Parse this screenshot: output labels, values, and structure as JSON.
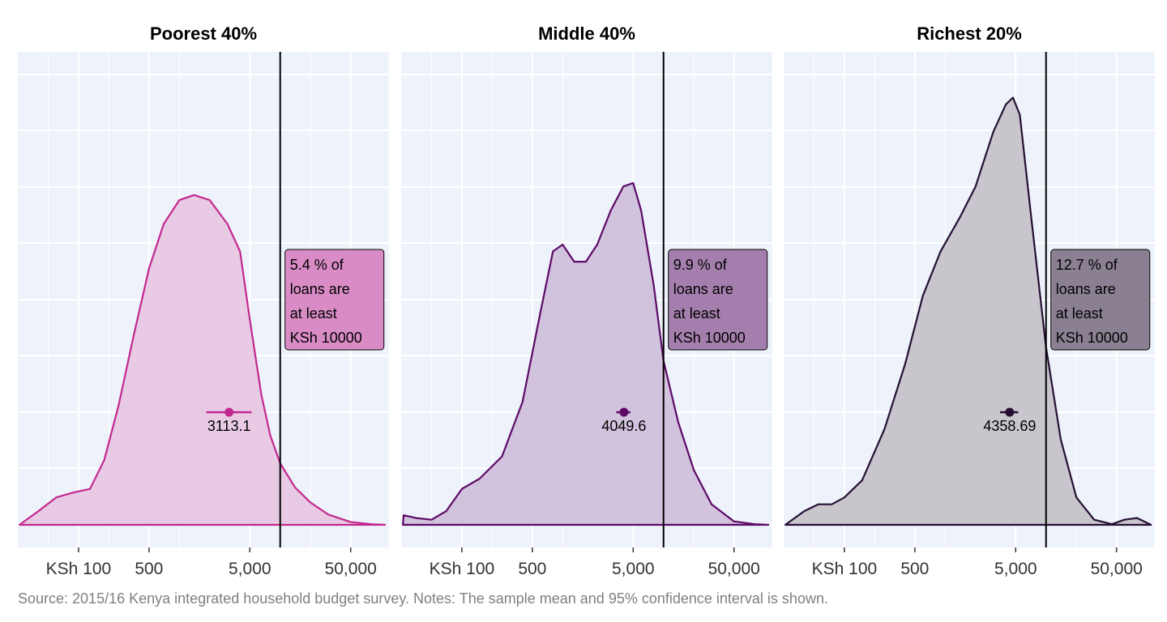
{
  "caption": "Source: 2015/16 Kenya integrated household budget survey. Notes: The sample mean and 95% confidence interval is shown.",
  "chart_data": [
    {
      "type": "area",
      "title": "Poorest 40%",
      "xscale": "log",
      "xlim": [
        25,
        120000
      ],
      "xticks": [
        100,
        500,
        5000,
        50000
      ],
      "xtick_labels": [
        "KSh 100",
        "500",
        "5,000",
        "50,000"
      ],
      "threshold": 10000,
      "annotation": [
        "5.4 % of",
        "loans are",
        "at least",
        "KSh 10000"
      ],
      "mean": 3113.1,
      "mean_label": "3113.1",
      "ci": [
        1850,
        5200
      ],
      "color": "#c3288f",
      "fill": "#e8cae4",
      "label_fill": "#d88bc5",
      "density": {
        "x": [
          26,
          40,
          60,
          90,
          130,
          180,
          250,
          350,
          500,
          700,
          1000,
          1400,
          2000,
          3000,
          4000,
          5000,
          6500,
          8000,
          10000,
          14000,
          20000,
          30000,
          50000,
          80000,
          110000
        ],
        "y": [
          0.0,
          0.04,
          0.08,
          0.095,
          0.105,
          0.19,
          0.35,
          0.55,
          0.75,
          0.88,
          0.95,
          0.965,
          0.95,
          0.88,
          0.8,
          0.6,
          0.38,
          0.26,
          0.18,
          0.11,
          0.065,
          0.03,
          0.008,
          0.002,
          0.0
        ]
      }
    },
    {
      "type": "area",
      "title": "Middle 40%",
      "xscale": "log",
      "xlim": [
        25,
        120000
      ],
      "xticks": [
        100,
        500,
        5000,
        50000
      ],
      "xtick_labels": [
        "KSh 100",
        "500",
        "5,000",
        "50,000"
      ],
      "threshold": 10000,
      "annotation": [
        "9.9 % of",
        "loans are",
        "at least",
        "KSh 10000"
      ],
      "mean": 4049.6,
      "mean_label": "4049.6",
      "ci": [
        3400,
        4700
      ],
      "color": "#5c0a66",
      "fill": "#d1c2dd",
      "label_fill": "#a47fad",
      "density": {
        "x": [
          26,
          26.5,
          35,
          50,
          70,
          100,
          150,
          250,
          400,
          600,
          800,
          1000,
          1300,
          1700,
          2200,
          3000,
          4000,
          5000,
          6000,
          8000,
          10000,
          14000,
          20000,
          30000,
          50000,
          80000,
          110000
        ],
        "y": [
          0.0,
          0.028,
          0.02,
          0.015,
          0.04,
          0.105,
          0.135,
          0.2,
          0.36,
          0.62,
          0.8,
          0.82,
          0.77,
          0.77,
          0.82,
          0.92,
          0.99,
          1.0,
          0.92,
          0.7,
          0.48,
          0.3,
          0.16,
          0.06,
          0.01,
          0.002,
          0.0
        ]
      }
    },
    {
      "type": "area",
      "title": "Richest 20%",
      "xscale": "log",
      "xlim": [
        25,
        120000
      ],
      "xticks": [
        100,
        500,
        5000,
        50000
      ],
      "xtick_labels": [
        "KSh 100",
        "500",
        "5,000",
        "50,000"
      ],
      "threshold": 10000,
      "annotation": [
        "12.7 % of",
        "loans are",
        "at least",
        "KSh 10000"
      ],
      "mean": 4358.69,
      "mean_label": "4358.69",
      "ci": [
        3500,
        5300
      ],
      "color": "#251033",
      "fill": "#c8c5cd",
      "label_fill": "#8a8091",
      "density": {
        "x": [
          26,
          40,
          55,
          75,
          100,
          150,
          250,
          400,
          600,
          900,
          1400,
          2000,
          3000,
          4000,
          4700,
          5500,
          7000,
          10000,
          14000,
          20000,
          30000,
          45000,
          60000,
          80000,
          110000
        ],
        "y": [
          0.0,
          0.04,
          0.06,
          0.06,
          0.08,
          0.13,
          0.28,
          0.47,
          0.67,
          0.8,
          0.9,
          0.99,
          1.15,
          1.23,
          1.25,
          1.2,
          0.92,
          0.52,
          0.25,
          0.08,
          0.015,
          0.002,
          0.015,
          0.02,
          0.0
        ]
      }
    }
  ]
}
